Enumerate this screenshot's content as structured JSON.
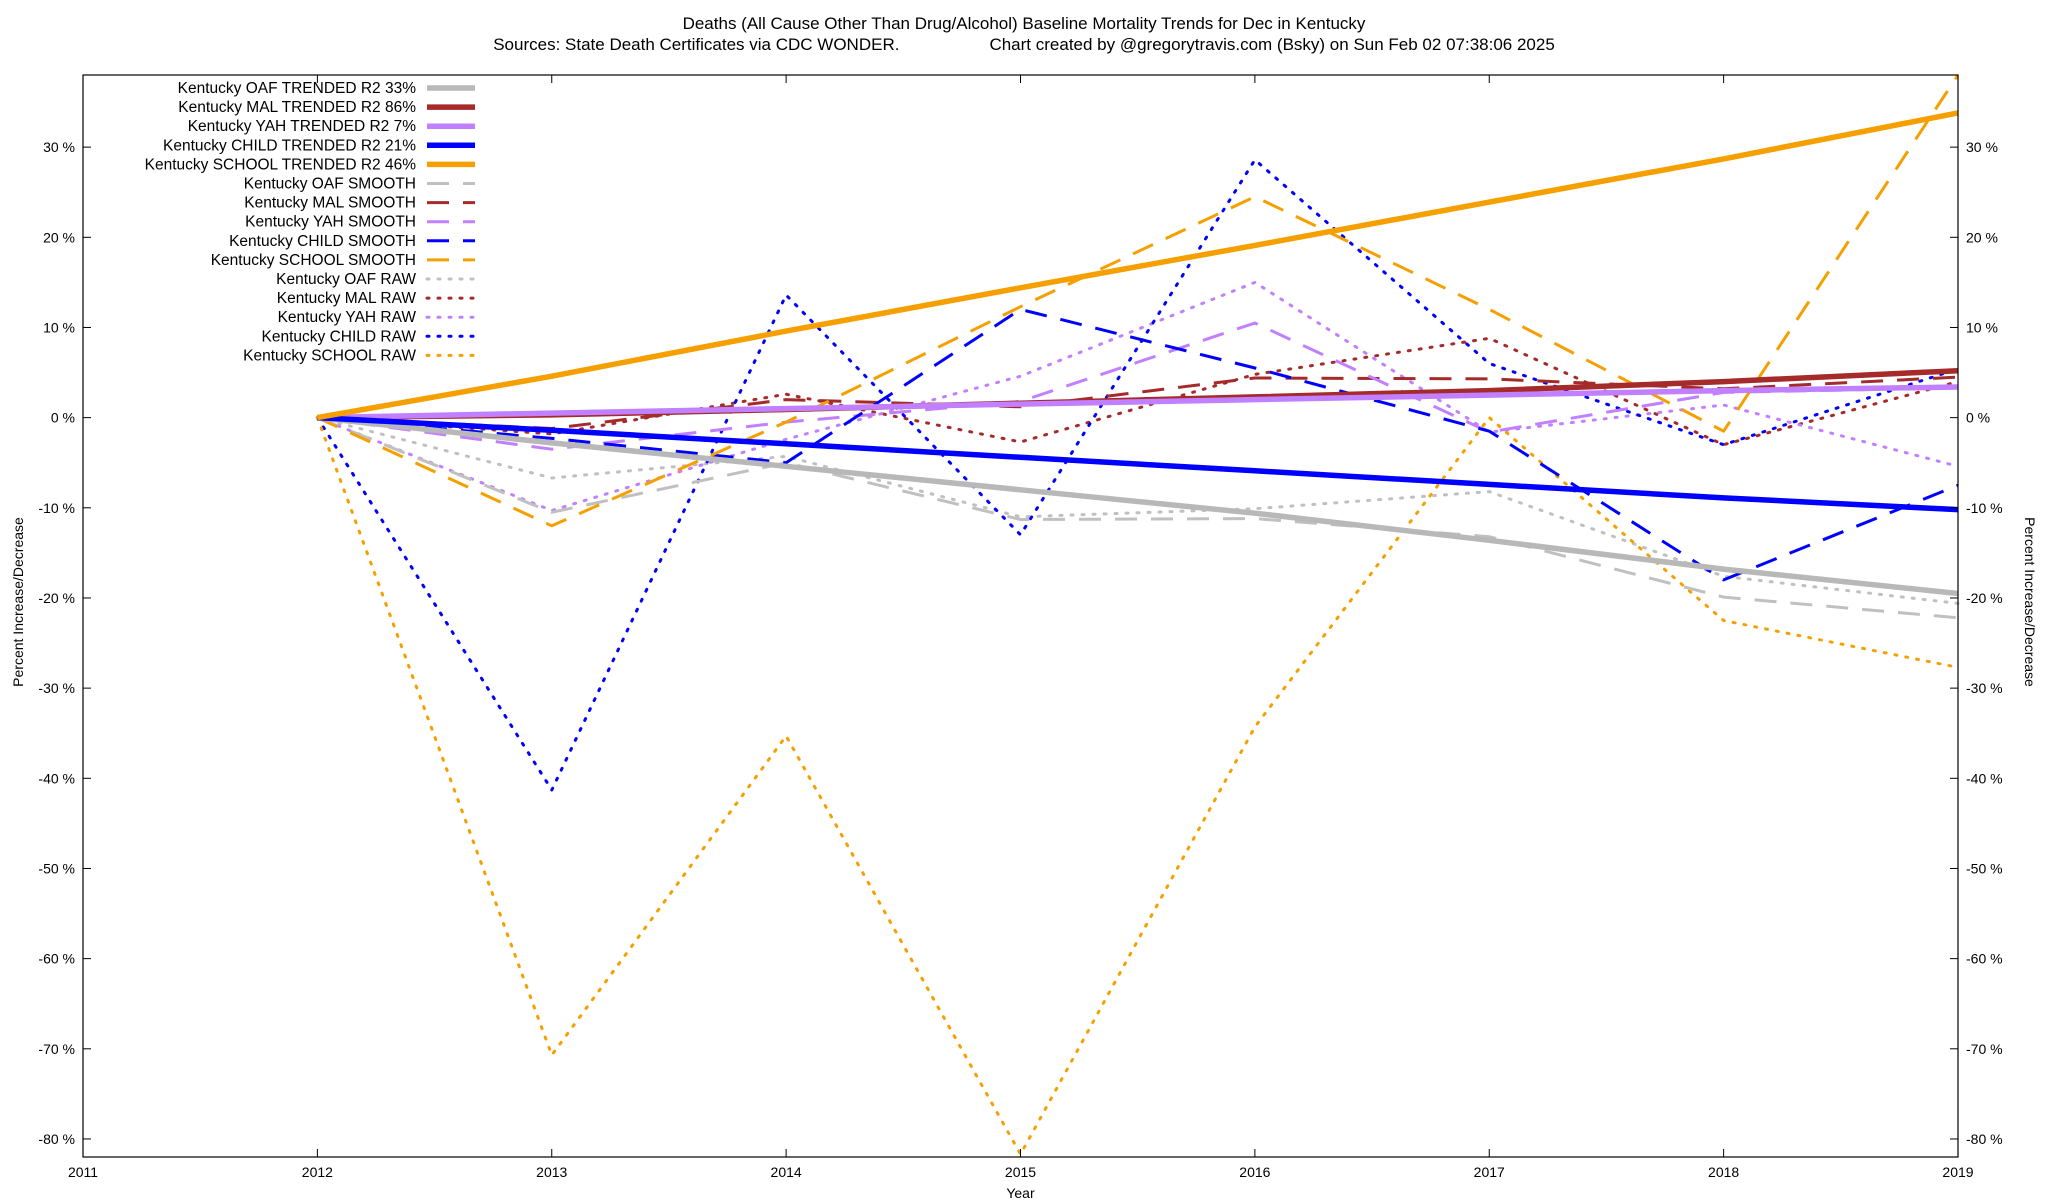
{
  "chart_data": {
    "type": "line",
    "title": "Deaths (All Cause Other Than Drug/Alcohol)  Baseline Mortality Trends for Dec in Kentucky",
    "subtitle_left": "Sources: State Death Certificates via CDC WONDER.",
    "subtitle_right": "Chart created by @gregorytravis.com (Bsky) on Sun Feb 02 07:38:06 2025",
    "xlabel": "Year",
    "ylabel": "Percent Increase/Decrease",
    "xlim": [
      2011,
      2019
    ],
    "ylim": [
      -82,
      38
    ],
    "x_ticks": [
      "2011",
      "2012",
      "2013",
      "2014",
      "2015",
      "2016",
      "2017",
      "2018",
      "2019"
    ],
    "y_ticks": [
      "30 %",
      "20 %",
      "10 %",
      "0 %",
      "-10 %",
      "-20 %",
      "-30 %",
      "-40 %",
      "-50 %",
      "-60 %",
      "-70 %",
      "-80 %"
    ],
    "legend_position": "top-left",
    "x": [
      2012,
      2013,
      2014,
      2015,
      2016,
      2017,
      2018,
      2019
    ],
    "series": [
      {
        "name": "Kentucky OAF TRENDED R2  33%",
        "style": "trend",
        "color": "#b8b8b8",
        "values": [
          0,
          -2.8,
          -5.4,
          -8.0,
          -10.6,
          -13.6,
          -16.8,
          -19.5
        ]
      },
      {
        "name": "Kentucky MAL TRENDED R2  86%",
        "style": "trend",
        "color": "#a52a2a",
        "values": [
          0,
          0.3,
          0.9,
          1.6,
          2.3,
          3.0,
          4.0,
          5.2
        ]
      },
      {
        "name": "Kentucky YAH TRENDED R2   7%",
        "style": "trend",
        "color": "#c080ff",
        "values": [
          0,
          0.5,
          1.0,
          1.5,
          2.0,
          2.5,
          3.0,
          3.4
        ]
      },
      {
        "name": "Kentucky CHILD TRENDED R2  21%",
        "style": "trend",
        "color": "#0000ff",
        "values": [
          0,
          -1.4,
          -2.9,
          -4.4,
          -5.9,
          -7.4,
          -8.9,
          -10.2
        ]
      },
      {
        "name": "Kentucky SCHOOL TRENDED R2  46%",
        "style": "trend",
        "color": "#f5a000",
        "values": [
          0,
          4.6,
          9.6,
          14.4,
          19.1,
          23.9,
          28.7,
          33.8
        ]
      },
      {
        "name": "Kentucky OAF SMOOTH",
        "style": "smooth",
        "color": "#c0c0c0",
        "values": [
          0,
          -10.5,
          -5.0,
          -11.3,
          -11.2,
          -13.2,
          -19.9,
          -22.2
        ]
      },
      {
        "name": "Kentucky MAL SMOOTH",
        "style": "smooth",
        "color": "#a52a2a",
        "values": [
          0,
          -1.2,
          2.0,
          1.2,
          4.4,
          4.3,
          3.2,
          4.5
        ]
      },
      {
        "name": "Kentucky YAH SMOOTH",
        "style": "smooth",
        "color": "#c080ff",
        "values": [
          0,
          -3.5,
          -0.5,
          1.8,
          10.5,
          -1.6,
          2.8,
          3.3
        ]
      },
      {
        "name": "Kentucky CHILD SMOOTH",
        "style": "smooth",
        "color": "#0000ff",
        "values": [
          0,
          -2.3,
          -5.0,
          12.0,
          5.5,
          -1.5,
          -18.0,
          -7.5
        ]
      },
      {
        "name": "Kentucky SCHOOL SMOOTH",
        "style": "smooth",
        "color": "#f5a000",
        "values": [
          0,
          -12.0,
          -0.5,
          12.3,
          24.5,
          12.0,
          -1.5,
          38.0
        ]
      },
      {
        "name": "Kentucky OAF RAW",
        "style": "raw",
        "color": "#c0c0c0",
        "values": [
          0,
          -6.7,
          -4.3,
          -11.0,
          -10.1,
          -8.2,
          -17.6,
          -20.6
        ]
      },
      {
        "name": "Kentucky MAL RAW",
        "style": "raw",
        "color": "#a52a2a",
        "values": [
          0,
          -1.8,
          2.6,
          -2.7,
          4.8,
          8.8,
          -3.0,
          4.0
        ]
      },
      {
        "name": "Kentucky YAH RAW",
        "style": "raw",
        "color": "#c080ff",
        "values": [
          0,
          -10.3,
          -2.4,
          4.6,
          15.0,
          -1.6,
          1.4,
          -5.4
        ]
      },
      {
        "name": "Kentucky CHILD RAW",
        "style": "raw",
        "color": "#0000ff",
        "values": [
          0,
          -41.3,
          13.6,
          -13.0,
          28.6,
          6.0,
          -3.0,
          5.4
        ]
      },
      {
        "name": "Kentucky SCHOOL RAW",
        "style": "raw",
        "color": "#f5a000",
        "values": [
          0,
          -70.7,
          -35.3,
          -81.7,
          -34.3,
          0.0,
          -22.5,
          -27.7
        ]
      }
    ]
  }
}
